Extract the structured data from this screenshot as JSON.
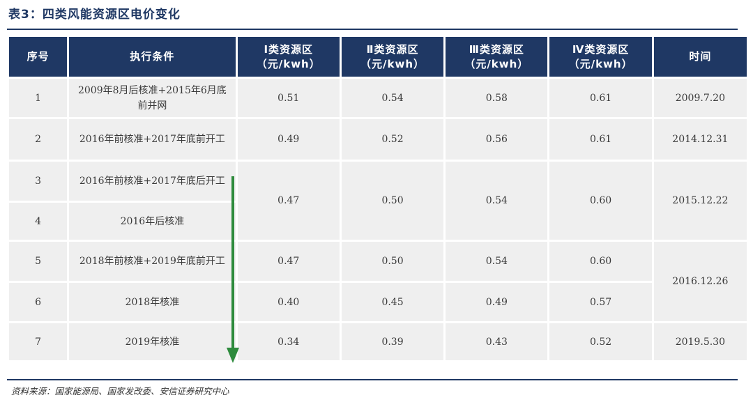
{
  "title": "表3：四类风能资源区电价变化",
  "table": {
    "headers": [
      [
        "序号"
      ],
      [
        "执行条件"
      ],
      [
        "Ⅰ类资源区",
        "（元/kwh）"
      ],
      [
        "Ⅱ类资源区",
        "（元/kwh）"
      ],
      [
        "Ⅲ类资源区",
        "（元/kwh）"
      ],
      [
        "Ⅳ类资源区",
        "（元/kwh）"
      ],
      [
        "时间"
      ]
    ],
    "rows": [
      {
        "no": "1",
        "cond": "2009年8月后核准+2015年6月底前并网",
        "p1": "0.51",
        "p2": "0.54",
        "p3": "0.58",
        "p4": "0.61",
        "time": "2009.7.20"
      },
      {
        "no": "2",
        "cond": "2016年前核准+2017年底前开工",
        "p1": "0.49",
        "p2": "0.52",
        "p3": "0.56",
        "p4": "0.61",
        "time": "2014.12.31"
      },
      {
        "no": "3",
        "cond": "2016年前核准+2017年底后开工",
        "p1": "0.47",
        "p2": "0.50",
        "p3": "0.54",
        "p4": "0.60",
        "time": "2015.12.22"
      },
      {
        "no": "4",
        "cond": "2016年后核准"
      },
      {
        "no": "5",
        "cond": "2018年前核准+2019年底前开工",
        "p1": "0.47",
        "p2": "0.50",
        "p3": "0.54",
        "p4": "0.60",
        "time": "2016.12.26"
      },
      {
        "no": "6",
        "cond": "2018年核准",
        "p1": "0.40",
        "p2": "0.45",
        "p3": "0.49",
        "p4": "0.57"
      },
      {
        "no": "7",
        "cond": "2019年核准",
        "p1": "0.34",
        "p2": "0.39",
        "p3": "0.43",
        "p4": "0.52",
        "time": "2019.5.30"
      }
    ]
  },
  "source": "资料来源：国家能源局、国家发改委、安信证券研究中心",
  "colors": {
    "header_bg": "#1f3864",
    "cell_bg": "#efefef",
    "arrow": "#2e8b3d"
  }
}
